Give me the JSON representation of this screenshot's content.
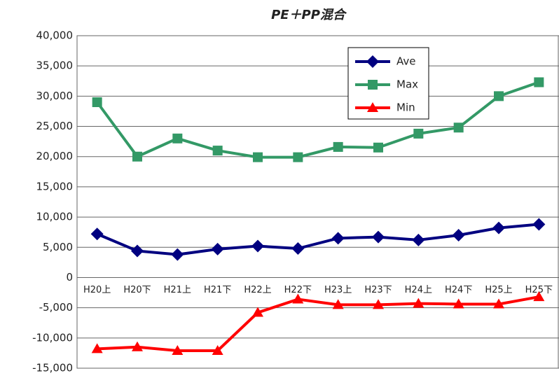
{
  "chart_data": {
    "type": "line",
    "title": "PE＋PP混合",
    "categories": [
      "H20上",
      "H20下",
      "H21上",
      "H21下",
      "H22上",
      "H22下",
      "H23上",
      "H23下",
      "H24上",
      "H24下",
      "H25上",
      "H25下"
    ],
    "series": [
      {
        "name": "Ave",
        "color": "#000080",
        "marker": "diamond",
        "values": [
          7200,
          4400,
          3800,
          4700,
          5200,
          4800,
          6500,
          6700,
          6200,
          7000,
          8200,
          8800
        ]
      },
      {
        "name": "Max",
        "color": "#339966",
        "marker": "square",
        "values": [
          29000,
          20000,
          23000,
          21000,
          19900,
          19900,
          21600,
          21500,
          23800,
          24800,
          30000,
          32300
        ]
      },
      {
        "name": "Min",
        "color": "#ff0000",
        "marker": "triangle",
        "values": [
          -11800,
          -11500,
          -12100,
          -12100,
          -5800,
          -3600,
          -4500,
          -4500,
          -4300,
          -4400,
          -4400,
          -3200
        ]
      }
    ],
    "ylim": [
      -15000,
      40000
    ],
    "yticks": [
      {
        "value": -15000,
        "label": "-15,000"
      },
      {
        "value": -10000,
        "label": "-10,000"
      },
      {
        "value": -5000,
        "label": "-5,000"
      },
      0,
      {
        "value": 5000,
        "label": "5,000"
      },
      {
        "value": 10000,
        "label": "10,000"
      },
      {
        "value": 15000,
        "label": "15,000"
      },
      {
        "value": 20000,
        "label": "20,000"
      },
      {
        "value": 25000,
        "label": "25,000"
      },
      {
        "value": 30000,
        "label": "30,000"
      },
      {
        "value": 35000,
        "label": "35,000"
      },
      {
        "value": 40000,
        "label": "40,000"
      }
    ],
    "grid": true,
    "legend": "upper center"
  }
}
